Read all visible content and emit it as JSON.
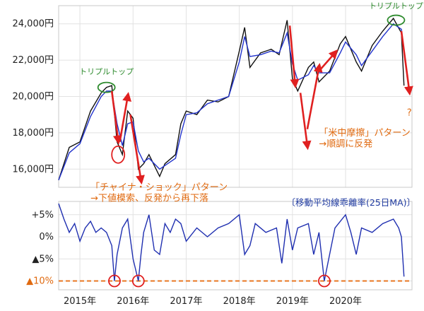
{
  "chart_data": [
    {
      "type": "line",
      "panel": "price",
      "ylim": [
        15000,
        25000
      ],
      "yticks": [
        16000,
        18000,
        20000,
        22000,
        24000
      ],
      "ytick_labels": [
        "16,000円",
        "18,000円",
        "20,000円",
        "22,000円",
        "24,000円"
      ],
      "x": [
        2014.6,
        2014.8,
        2015.0,
        2015.2,
        2015.4,
        2015.5,
        2015.6,
        2015.7,
        2015.8,
        2015.9,
        2016.0,
        2016.1,
        2016.2,
        2016.3,
        2016.5,
        2016.6,
        2016.8,
        2016.9,
        2017.0,
        2017.2,
        2017.4,
        2017.6,
        2017.8,
        2018.0,
        2018.1,
        2018.2,
        2018.4,
        2018.6,
        2018.75,
        2018.9,
        2019.0,
        2019.1,
        2019.3,
        2019.4,
        2019.5,
        2019.7,
        2019.9,
        2020.0,
        2020.2,
        2020.3,
        2020.5,
        2020.7,
        2020.9,
        2021.05,
        2021.1
      ],
      "series": [
        {
          "values": [
            15400,
            17200,
            17500,
            19200,
            20200,
            20500,
            20600,
            17500,
            16800,
            19200,
            18800,
            16000,
            16300,
            16800,
            15600,
            16300,
            16800,
            18500,
            19200,
            19000,
            19800,
            19700,
            20000,
            22500,
            23800,
            21600,
            22400,
            22600,
            22300,
            24200,
            21000,
            20300,
            21600,
            21900,
            20800,
            21400,
            22900,
            23300,
            21900,
            21400,
            22800,
            23600,
            24300,
            23500,
            20600
          ]
        },
        {
          "values": [
            15400,
            16900,
            17400,
            18900,
            20000,
            20300,
            20300,
            18500,
            17300,
            18500,
            18600,
            17000,
            16400,
            16600,
            16000,
            16200,
            16600,
            17900,
            19000,
            19100,
            19600,
            19800,
            20000,
            21900,
            23300,
            22200,
            22300,
            22500,
            22400,
            23500,
            21800,
            20900,
            21200,
            21700,
            21300,
            21300,
            22400,
            23000,
            22300,
            21700,
            22500,
            23300,
            24000,
            23700,
            22400
          ]
        }
      ],
      "annotations": [
        {
          "text": "トリプルトップ",
          "x": 2015.5,
          "y": 20600
        },
        {
          "text": "トリプルトップ",
          "x": 2020.95,
          "y": 24300
        },
        {
          "text": "「チャイナ・ショック」パターン",
          "x": 2015.2,
          "y": 15000
        },
        {
          "text": "→下値模索、反発から再下落",
          "x": 2015.2,
          "y": 14400
        },
        {
          "text": "「米中摩擦」パターン",
          "x": 2019.5,
          "y": 18000
        },
        {
          "text": "→順調に反発",
          "x": 2019.5,
          "y": 17400
        },
        {
          "text": "?",
          "x": 2021.2,
          "y": 19100
        }
      ]
    },
    {
      "type": "line",
      "panel": "deviation",
      "title": "〔移動平均線乖離率(25日MA)〕",
      "ylim": [
        -12,
        8
      ],
      "yticks": [
        5,
        0,
        -5,
        -10
      ],
      "ytick_labels": [
        "+5%",
        "0%",
        "▲5%",
        "▲10%"
      ],
      "reference_line": -10,
      "xticks": [
        2015,
        2016,
        2017,
        2018,
        2019,
        2020
      ],
      "xtick_labels": [
        "2015年",
        "2016年",
        "2017年",
        "2018年",
        "2019年",
        "2020年"
      ],
      "x": [
        2014.6,
        2014.7,
        2014.8,
        2014.9,
        2015.0,
        2015.1,
        2015.2,
        2015.3,
        2015.4,
        2015.5,
        2015.6,
        2015.65,
        2015.7,
        2015.8,
        2015.9,
        2016.0,
        2016.1,
        2016.15,
        2016.2,
        2016.3,
        2016.4,
        2016.5,
        2016.6,
        2016.7,
        2016.8,
        2016.9,
        2017.0,
        2017.2,
        2017.4,
        2017.6,
        2017.8,
        2018.0,
        2018.1,
        2018.2,
        2018.3,
        2018.5,
        2018.7,
        2018.8,
        2018.9,
        2019.0,
        2019.1,
        2019.3,
        2019.4,
        2019.5,
        2019.6,
        2019.8,
        2020.0,
        2020.1,
        2020.2,
        2020.3,
        2020.5,
        2020.7,
        2020.9,
        2021.0,
        2021.05,
        2021.1
      ],
      "series": [
        {
          "values": [
            7.5,
            4,
            1,
            3,
            -1,
            2,
            3.5,
            1,
            2,
            1,
            -2,
            -10,
            -4,
            2,
            4,
            -5,
            -10,
            -4,
            1,
            5,
            -3,
            -4,
            3,
            1,
            4,
            3,
            -1,
            2,
            0,
            2,
            3,
            5,
            -4,
            -2,
            3,
            1,
            2,
            -6,
            4,
            -3,
            2,
            3,
            -4,
            1,
            -10,
            2,
            5,
            1,
            -4,
            2,
            1,
            3,
            4,
            2,
            0,
            -9
          ]
        }
      ]
    }
  ]
}
